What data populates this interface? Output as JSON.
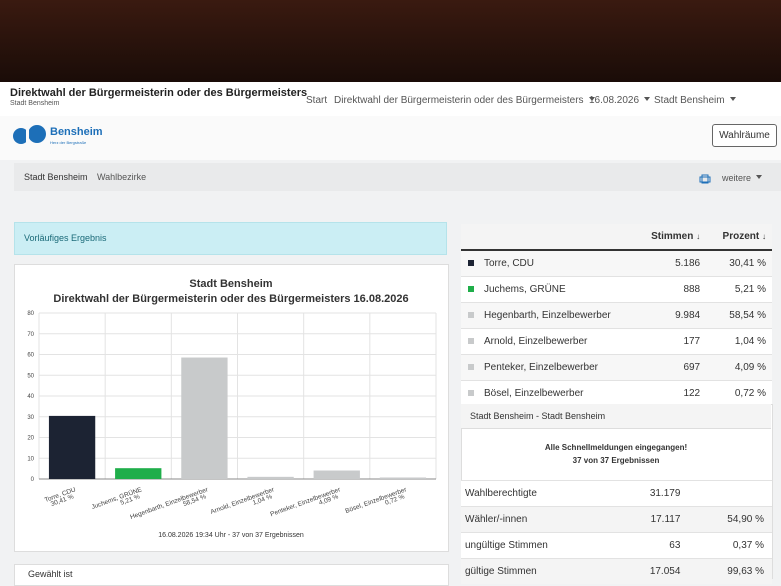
{
  "header": {
    "title": "Direktwahl der Bürgermeisterin oder des Bürgermeisters",
    "subtitle": "Stadt Bensheim"
  },
  "nav": [
    "Start",
    "Direktwahl der Bürgermeisterin oder des Bürgermeisters",
    "16.08.2026",
    "Stadt Bensheim"
  ],
  "logo": {
    "name": "Bensheim",
    "tagline": "Herz der Bergstraße"
  },
  "button": "Wahlräume",
  "subnav": [
    "Stadt Bensheim",
    "Wahlbezirke",
    "weitere"
  ],
  "alert": "Vorläufiges Ergebnis",
  "chart_data": {
    "type": "bar",
    "title": "Stadt Bensheim",
    "subtitle": "Direktwahl der Bürgermeisterin oder des Bürgermeisters 16.08.2026",
    "categories": [
      "Torre, CDU",
      "Juchems, GRÜNE",
      "Hegenbarth, Einzelbewerber",
      "Arnold, Einzelbewerber",
      "Penteker, Einzelbewerber",
      "Bösel, Einzelbewerber"
    ],
    "values": [
      30.41,
      5.21,
      58.54,
      1.04,
      4.09,
      0.72
    ],
    "value_labels": [
      "30,41 %",
      "5,21 %",
      "58,54 %",
      "1,04 %",
      "4,09 %",
      "0,72 %"
    ],
    "colors": [
      "#1c2333",
      "#1fae4a",
      "#c8cacb",
      "#c8cacb",
      "#c8cacb",
      "#c8cacb"
    ],
    "ylim": [
      0,
      80
    ],
    "yticks": [
      0,
      10,
      20,
      30,
      40,
      50,
      60,
      70,
      80
    ],
    "grid": true,
    "footer": "16.08.2026 19:34 Uhr - 37 von 37 Ergebnissen"
  },
  "results": {
    "headers": [
      "Stimmen",
      "Prozent"
    ],
    "rows": [
      {
        "name": "Torre, CDU",
        "votes": "5.186",
        "percent": "30,41 %",
        "color": "#1c2333"
      },
      {
        "name": "Juchems, GRÜNE",
        "votes": "888",
        "percent": "5,21 %",
        "color": "#1fae4a"
      },
      {
        "name": "Hegenbarth, Einzelbewerber",
        "votes": "9.984",
        "percent": "58,54 %",
        "color": "#c8cacb"
      },
      {
        "name": "Arnold, Einzelbewerber",
        "votes": "177",
        "percent": "1,04 %",
        "color": "#c8cacb"
      },
      {
        "name": "Penteker, Einzelbewerber",
        "votes": "697",
        "percent": "4,09 %",
        "color": "#c8cacb"
      },
      {
        "name": "Bösel, Einzelbewerber",
        "votes": "122",
        "percent": "0,72 %",
        "color": "#c8cacb"
      }
    ]
  },
  "summary": {
    "title": "Stadt Bensheim - Stadt Bensheim",
    "notice": "Alle Schnellmeldungen eingegangen!",
    "count": "37 von 37 Ergebnissen",
    "rows": [
      [
        "Wahlberechtigte",
        "31.179",
        null
      ],
      [
        "Wähler/-innen",
        "17.117",
        "54,90 %"
      ],
      [
        "ungültige Stimmen",
        "63",
        "0,37 %"
      ],
      [
        "gültige Stimmen",
        "17.054",
        "99,63 %"
      ]
    ]
  },
  "elected": "Gewählt ist"
}
